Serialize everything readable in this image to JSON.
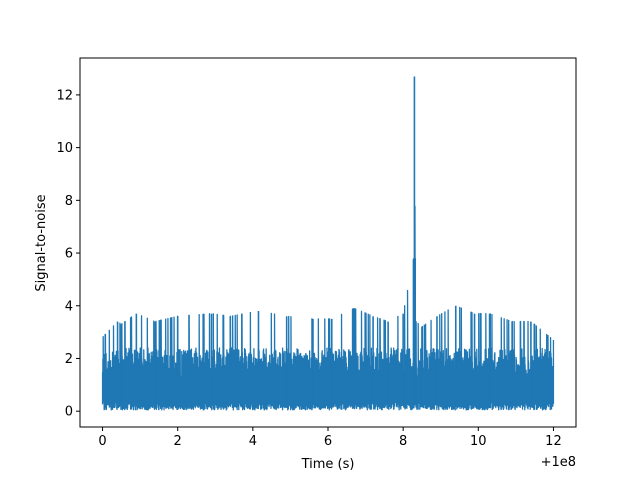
{
  "chart_data": {
    "type": "line",
    "title": "",
    "xlabel": "Time (s)",
    "ylabel": "Signal-to-noise",
    "x_offset_label": "+1e8",
    "xlim": [
      -0.6,
      12.6
    ],
    "ylim": [
      -0.6,
      13.4
    ],
    "x_ticks": [
      0,
      2,
      4,
      6,
      8,
      10,
      12
    ],
    "x_tick_labels": [
      "0",
      "2",
      "4",
      "6",
      "8",
      "10",
      "12"
    ],
    "y_ticks": [
      0,
      2,
      4,
      6,
      8,
      10,
      12
    ],
    "y_tick_labels": [
      "0",
      "2",
      "4",
      "6",
      "8",
      "10",
      "12"
    ],
    "grid": false,
    "series": [
      {
        "name": "",
        "color": "#1f77b4",
        "x": [
          0,
          0.4,
          0.5,
          0.9,
          1.4,
          2.0,
          2.9,
          3.4,
          4.15,
          4.9,
          5.6,
          6.1,
          6.7,
          7.2,
          7.6,
          8.0,
          8.28,
          8.3,
          8.32,
          8.34,
          8.5,
          8.9,
          9.4,
          9.9,
          10.3,
          10.9,
          11.4,
          12.0
        ],
        "values": [
          2.8,
          3.4,
          3.3,
          3.7,
          3.4,
          3.6,
          3.7,
          3.6,
          3.8,
          3.6,
          3.5,
          3.5,
          3.9,
          3.6,
          3.4,
          3.7,
          5.8,
          12.7,
          5.8,
          3.4,
          3.2,
          3.6,
          4.0,
          3.7,
          3.7,
          3.4,
          3.4,
          2.7
        ]
      }
    ],
    "band_lower": 0.05,
    "typical_upper": 2.4
  }
}
